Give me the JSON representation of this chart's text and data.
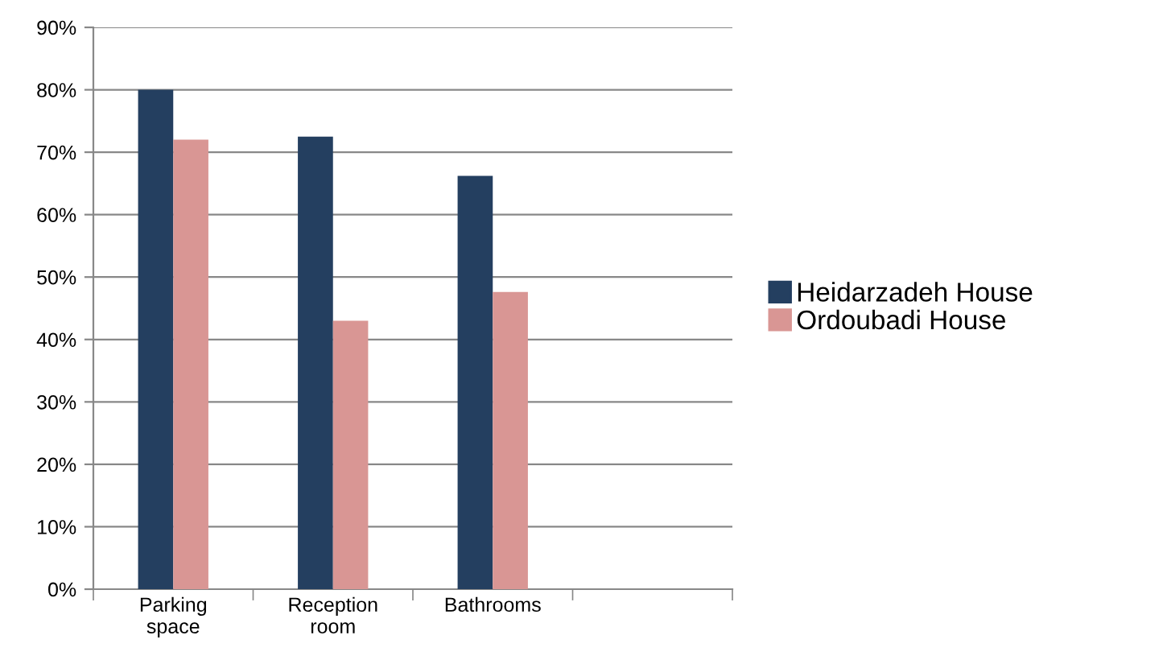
{
  "chart_data": {
    "type": "bar",
    "categories": [
      "Parking\nspace",
      "Reception\nroom",
      "Bathrooms",
      null
    ],
    "series": [
      {
        "name": "Heidarzadeh House",
        "color": "#243f60",
        "values": [
          80,
          72.5,
          66.2,
          null
        ]
      },
      {
        "name": "Ordoubadi House",
        "color": "#d99694",
        "values": [
          72,
          43,
          47.6,
          null
        ]
      }
    ],
    "ylim": [
      0,
      90
    ],
    "yticks": [
      {
        "value": 0,
        "label": "0%"
      },
      {
        "value": 10,
        "label": "10%"
      },
      {
        "value": 20,
        "label": "20%"
      },
      {
        "value": 30,
        "label": "30%"
      },
      {
        "value": 40,
        "label": "40%"
      },
      {
        "value": 50,
        "label": "50%"
      },
      {
        "value": 60,
        "label": "60%"
      },
      {
        "value": 70,
        "label": "70%"
      },
      {
        "value": 80,
        "label": "80%"
      },
      {
        "value": 90,
        "label": "90%"
      }
    ],
    "grid": "y",
    "legend": "right"
  }
}
